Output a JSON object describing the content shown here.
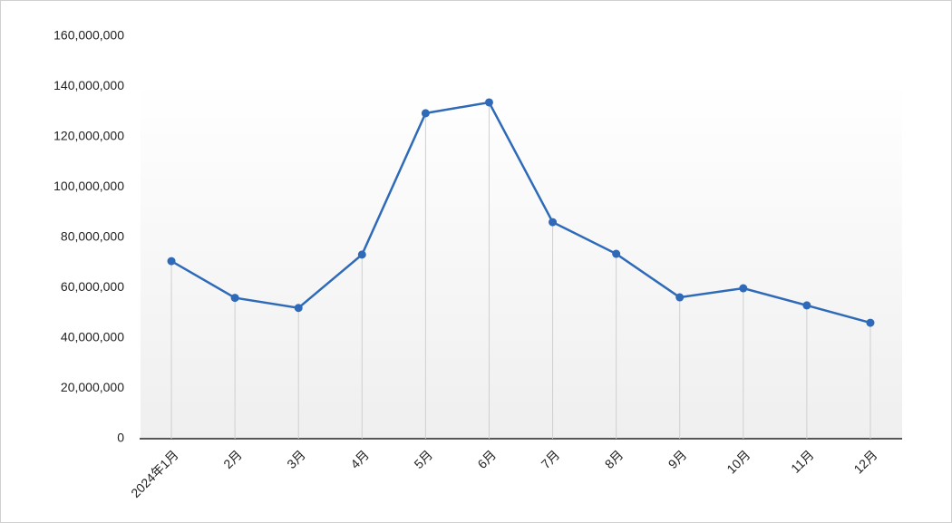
{
  "chart_data": {
    "type": "line",
    "categories": [
      "2024年1月",
      "2月",
      "3月",
      "4月",
      "5月",
      "6月",
      "7月",
      "8月",
      "9月",
      "10月",
      "11月",
      "12月"
    ],
    "series": [
      {
        "name": null,
        "color": "#2e6ab8",
        "values": [
          70600000,
          56000000,
          52000000,
          73200000,
          129400000,
          133700000,
          86100000,
          73500000,
          56200000,
          59800000,
          53000000,
          46100000
        ]
      }
    ],
    "ylim": [
      0,
      160000000
    ],
    "yticks": [
      0,
      {
        "value": 20000000,
        "label": "20,000,000"
      },
      {
        "value": 40000000,
        "label": "40,000,000"
      },
      {
        "value": 60000000,
        "label": "60,000,000"
      },
      {
        "value": 80000000,
        "label": "80,000,000"
      },
      {
        "value": 100000000,
        "label": "100,000,000"
      },
      {
        "value": 120000000,
        "label": "120,000,000"
      },
      {
        "value": 140000000,
        "label": "140,000,000"
      },
      {
        "value": 160000000,
        "label": "160,000,000"
      }
    ],
    "drop_lines": true
  }
}
